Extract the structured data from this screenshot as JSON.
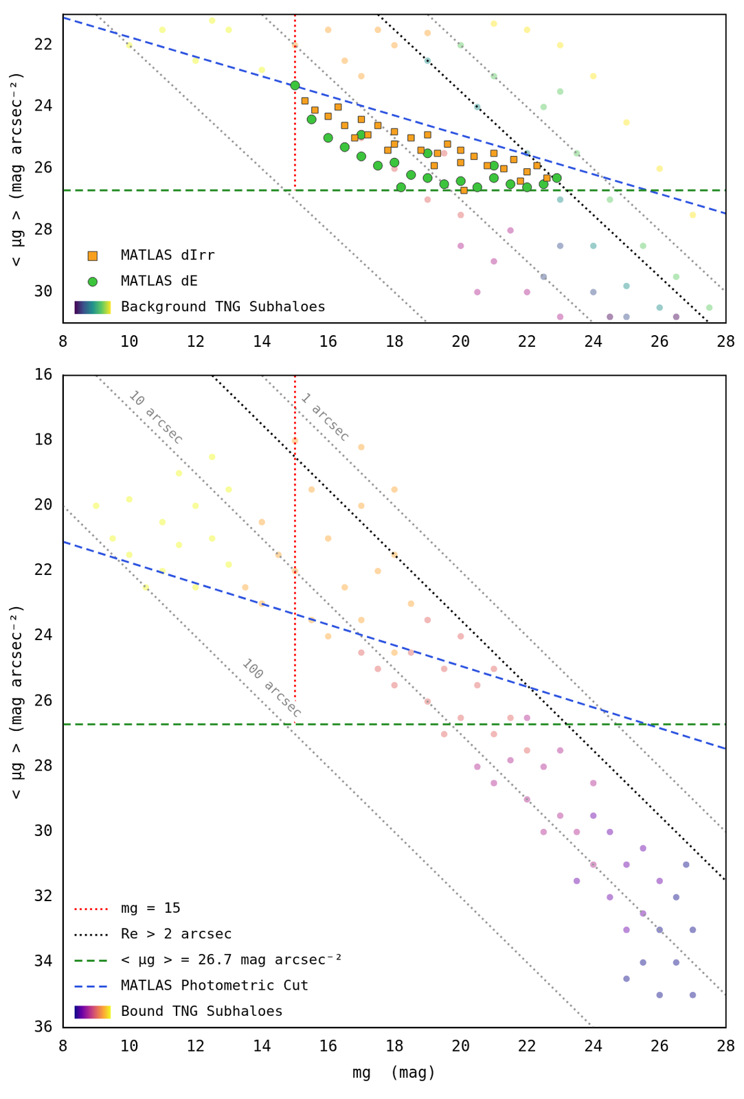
{
  "chart_data": [
    {
      "type": "scatter",
      "ylabel": "< μg > (mag arcsec⁻²)",
      "xlim": [
        8,
        28
      ],
      "xticks": [
        8,
        10,
        12,
        14,
        16,
        18,
        20,
        22,
        24,
        26,
        28
      ],
      "ylim": [
        31,
        21
      ],
      "yticks": [
        22,
        24,
        26,
        28,
        30
      ],
      "grid": false,
      "legend": "lower left",
      "series": [
        {
          "name": "MATLAS dIrr",
          "type": "scatter",
          "marker": "square",
          "color": "#f7a01f",
          "x": [
            15.3,
            15.6,
            16,
            16.3,
            16.5,
            17,
            17.2,
            17.5,
            18,
            18,
            18.5,
            18.8,
            19,
            19.3,
            19.6,
            20,
            20,
            20.4,
            20.8,
            21,
            21.3,
            21.6,
            22,
            22.3,
            22.6,
            20.1,
            16.8,
            17.8,
            19.2,
            21.8
          ],
          "values": [
            23.8,
            24.1,
            24.3,
            24.0,
            24.6,
            24.4,
            24.9,
            24.6,
            24.8,
            25.2,
            25.0,
            25.4,
            24.9,
            25.5,
            25.2,
            25.4,
            25.8,
            25.6,
            25.9,
            25.5,
            26.0,
            25.7,
            26.1,
            25.9,
            26.3,
            26.7,
            25.0,
            25.4,
            25.9,
            26.4
          ]
        },
        {
          "name": "MATLAS dE",
          "type": "scatter",
          "marker": "circle",
          "color": "#3cc43c",
          "x": [
            15.5,
            16,
            16.5,
            17,
            17.5,
            18,
            18.5,
            19,
            19.5,
            20,
            20.5,
            21,
            21.5,
            22,
            22.5,
            22.9,
            17,
            19,
            21,
            18.2,
            15
          ],
          "values": [
            24.4,
            25.0,
            25.3,
            25.6,
            25.9,
            25.8,
            26.2,
            26.3,
            26.5,
            26.4,
            26.6,
            26.3,
            26.5,
            26.6,
            26.5,
            26.3,
            24.9,
            25.5,
            25.9,
            26.6,
            23.3
          ]
        },
        {
          "name": "Background TNG Subhaloes",
          "type": "scatter",
          "marker": "circle",
          "x": [
            24.5,
            26.5,
            23,
            24,
            25,
            22.5,
            19,
            20.5,
            22,
            23,
            24,
            25,
            26,
            20,
            21,
            22.5,
            23.5,
            24.5,
            25.5,
            26.5,
            27.5,
            23,
            21,
            22,
            23,
            24,
            25,
            26,
            27
          ],
          "values": [
            30.8,
            30.8,
            28.5,
            30,
            30.8,
            29.5,
            22.5,
            24,
            25.5,
            27,
            28.5,
            29.8,
            30.5,
            22,
            23,
            24,
            25.5,
            27,
            28.5,
            29.5,
            30.5,
            23.5,
            21.3,
            21.5,
            22,
            23,
            24.5,
            26,
            27.5
          ],
          "colors": [
            "#440154",
            "#440154",
            "#3b528b",
            "#3b528b",
            "#3b528b",
            "#3b528b",
            "#21918c",
            "#21918c",
            "#21918c",
            "#21918c",
            "#21918c",
            "#21918c",
            "#21918c",
            "#5ec962",
            "#5ec962",
            "#5ec962",
            "#5ec962",
            "#5ec962",
            "#5ec962",
            "#5ec962",
            "#5ec962",
            "#5ec962",
            "#fde725",
            "#fde725",
            "#fde725",
            "#fde725",
            "#fde725",
            "#fde725",
            "#fde725"
          ]
        },
        {
          "type": "scatter",
          "marker": "circle",
          "x": [
            20,
            21,
            22,
            21.5,
            23,
            20.5,
            17,
            18,
            19,
            20,
            19.5,
            15,
            16,
            17,
            16.5,
            18,
            17.5,
            19,
            10,
            11,
            12,
            13,
            14,
            12.5
          ],
          "values": [
            28.5,
            29,
            30,
            28,
            30.8,
            30,
            25,
            26,
            27,
            27.5,
            25.5,
            22,
            21.5,
            23,
            22.5,
            22,
            21.5,
            21.6,
            22,
            21.5,
            22.5,
            21.5,
            22.8,
            21.2
          ],
          "colors": [
            "#b12a90",
            "#b12a90",
            "#b12a90",
            "#b12a90",
            "#b12a90",
            "#b12a90",
            "#e16462",
            "#e16462",
            "#e16462",
            "#e16462",
            "#e16462",
            "#fca636",
            "#fca636",
            "#fca636",
            "#fca636",
            "#fca636",
            "#fca636",
            "#fca636",
            "#f0f921",
            "#f0f921",
            "#f0f921",
            "#f0f921",
            "#f0f921",
            "#f0f921"
          ]
        },
        {
          "type": "line",
          "color": "#ff0000",
          "line_style": "dotted",
          "x": [
            15,
            15
          ],
          "values": [
            21,
            26.7
          ]
        },
        {
          "type": "line",
          "color": "#000000",
          "line_style": "dotted",
          "x": [
            17.5,
            27.5
          ],
          "values": [
            21,
            31
          ]
        },
        {
          "type": "line",
          "color": "#228b22",
          "line_style": "dashed",
          "x": [
            8,
            28
          ],
          "values": [
            26.7,
            26.7
          ]
        },
        {
          "type": "line",
          "color": "#2f55e0",
          "line_style": "dashed",
          "x": [
            8,
            28
          ],
          "values": [
            21.1,
            27.45
          ]
        },
        {
          "type": "line",
          "color": "#999999",
          "line_style": "dotted",
          "x": [
            19,
            28
          ],
          "values": [
            21,
            30
          ]
        },
        {
          "type": "line",
          "color": "#999999",
          "line_style": "dotted",
          "x": [
            14,
            24
          ],
          "values": [
            21,
            31
          ]
        },
        {
          "type": "line",
          "color": "#999999",
          "line_style": "dotted",
          "x": [
            9,
            19
          ],
          "values": [
            21,
            31
          ]
        }
      ]
    },
    {
      "type": "scatter",
      "xlabel": "mg  (mag)",
      "ylabel": "< μg > (mag arcsec⁻²)",
      "xlim": [
        8,
        28
      ],
      "xticks": [
        8,
        10,
        12,
        14,
        16,
        18,
        20,
        22,
        24,
        26,
        28
      ],
      "ylim": [
        36,
        16
      ],
      "yticks": [
        16,
        18,
        20,
        22,
        24,
        26,
        28,
        30,
        32,
        34,
        36
      ],
      "grid": false,
      "legend": "lower left",
      "annotations": [
        {
          "text": "10 arcsec",
          "x": 10.8,
          "y": 17.3
        },
        {
          "text": "1 arcsec",
          "x": 15.9,
          "y": 17.3
        },
        {
          "text": "100 arcsec",
          "x": 14.3,
          "y": 25.6
        }
      ],
      "series": [
        {
          "name": "mg = 15",
          "type": "line",
          "color": "#ff0000",
          "line_style": "dotted",
          "x": [
            15,
            15
          ],
          "values": [
            16,
            26.7
          ]
        },
        {
          "name": "Re > 2 arcsec",
          "type": "line",
          "color": "#000000",
          "line_style": "dotted",
          "x": [
            12.5,
            28
          ],
          "values": [
            16,
            31.5
          ]
        },
        {
          "name": "< μg > = 26.7 mag arcsec⁻²",
          "type": "line",
          "color": "#228b22",
          "line_style": "dashed",
          "x": [
            8,
            28
          ],
          "values": [
            26.7,
            26.7
          ]
        },
        {
          "name": "MATLAS Photometric Cut",
          "type": "line",
          "color": "#2f55e0",
          "line_style": "dashed",
          "x": [
            8,
            28
          ],
          "values": [
            21.1,
            27.45
          ]
        },
        {
          "type": "line",
          "color": "#999999",
          "line_style": "dotted",
          "x": [
            14,
            28
          ],
          "values": [
            16,
            30
          ]
        },
        {
          "type": "line",
          "color": "#999999",
          "line_style": "dotted",
          "x": [
            9,
            28
          ],
          "values": [
            16,
            35
          ]
        },
        {
          "type": "line",
          "color": "#999999",
          "line_style": "dotted",
          "x": [
            8,
            24
          ],
          "values": [
            20,
            36
          ]
        },
        {
          "name": "Bound TNG Subhaloes",
          "type": "scatter",
          "marker": "circle",
          "x": [
            25.5,
            26,
            26,
            26.5,
            26.5,
            27,
            27,
            26.8,
            25,
            23.5,
            24.5,
            24.5,
            25,
            25,
            25.5,
            25.5,
            26,
            24,
            20.5,
            21,
            21.5,
            22,
            22,
            22.5,
            23,
            23,
            23.5,
            24,
            24,
            22.5,
            17,
            17.5,
            18,
            18.5,
            19,
            19,
            19.5,
            20,
            20,
            20.5,
            21,
            21,
            21.5,
            22,
            19.5,
            13.5,
            14,
            14,
            14.5,
            15,
            15,
            15.5,
            15.5,
            16,
            16,
            16.5,
            17,
            17,
            17.5,
            18,
            18,
            17,
            18,
            18.5,
            9,
            9.5,
            10,
            10,
            10.5,
            11,
            11,
            11.5,
            11.5,
            12,
            12,
            12.5,
            12.5,
            13,
            13
          ],
          "values": [
            34,
            33,
            35,
            32,
            34,
            33,
            35,
            31,
            34.5,
            31.5,
            30,
            32,
            31,
            33,
            30.5,
            32.5,
            31.5,
            29.5,
            28,
            28.5,
            27.8,
            29,
            26.5,
            28,
            29.5,
            27.5,
            30,
            28.5,
            31,
            30,
            24.5,
            25,
            25.5,
            24.5,
            23.5,
            26,
            25,
            24,
            26.5,
            25.5,
            27,
            25,
            26.5,
            27.5,
            27,
            22.5,
            20.5,
            23,
            21.5,
            18,
            22,
            19.5,
            23.5,
            21,
            24,
            22.5,
            20,
            23.5,
            22,
            24.5,
            21.5,
            18.2,
            19.5,
            23,
            20,
            21,
            19.8,
            21.5,
            22.5,
            20.5,
            22,
            19,
            21.2,
            20,
            22.5,
            21,
            18.5,
            21.8,
            19.5
          ],
          "colors": [
            "#0d0887",
            "#0d0887",
            "#0d0887",
            "#0d0887",
            "#0d0887",
            "#0d0887",
            "#0d0887",
            "#0d0887",
            "#0d0887",
            "#6a00a8",
            "#6a00a8",
            "#6a00a8",
            "#6a00a8",
            "#6a00a8",
            "#6a00a8",
            "#6a00a8",
            "#6a00a8",
            "#6a00a8",
            "#b12a90",
            "#b12a90",
            "#b12a90",
            "#b12a90",
            "#b12a90",
            "#b12a90",
            "#b12a90",
            "#b12a90",
            "#b12a90",
            "#b12a90",
            "#b12a90",
            "#b12a90",
            "#e16462",
            "#e16462",
            "#e16462",
            "#e16462",
            "#e16462",
            "#e16462",
            "#e16462",
            "#e16462",
            "#e16462",
            "#e16462",
            "#e16462",
            "#e16462",
            "#e16462",
            "#e16462",
            "#e16462",
            "#fca636",
            "#fca636",
            "#fca636",
            "#fca636",
            "#fca636",
            "#fca636",
            "#fca636",
            "#fca636",
            "#fca636",
            "#fca636",
            "#fca636",
            "#fca636",
            "#fca636",
            "#fca636",
            "#fca636",
            "#fca636",
            "#fca636",
            "#fca636",
            "#fca636",
            "#f0f921",
            "#f0f921",
            "#f0f921",
            "#f0f921",
            "#f0f921",
            "#f0f921",
            "#f0f921",
            "#f0f921",
            "#f0f921",
            "#f0f921",
            "#f0f921",
            "#f0f921",
            "#f0f921",
            "#f0f921",
            "#f0f921"
          ]
        }
      ]
    }
  ]
}
